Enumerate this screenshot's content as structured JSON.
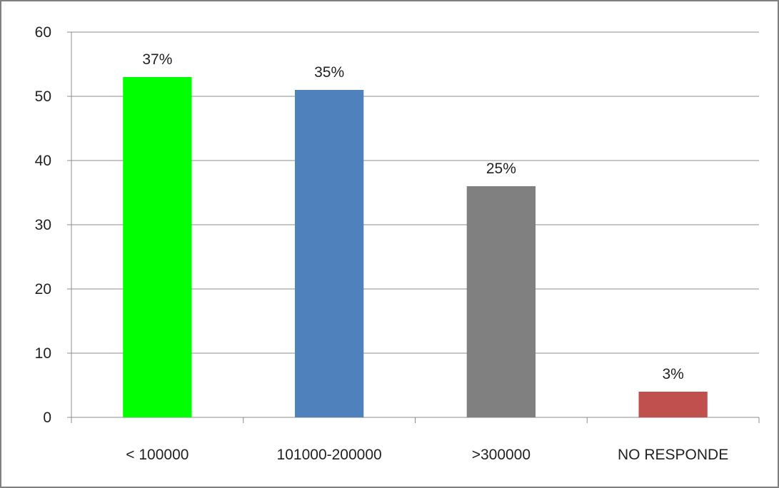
{
  "chart_data": {
    "type": "bar",
    "categories": [
      "< 100000",
      "101000-200000",
      ">300000",
      "NO RESPONDE"
    ],
    "values": [
      53,
      51,
      36,
      4
    ],
    "data_labels": [
      "37%",
      "35%",
      "25%",
      "3%"
    ],
    "bar_colors": [
      "#00FF00",
      "#4F81BD",
      "#808080",
      "#C0504D"
    ],
    "ylim": [
      0,
      60
    ],
    "yticks": [
      0,
      10,
      20,
      30,
      40,
      50,
      60
    ],
    "grid": true,
    "legend": "none",
    "title": "",
    "xlabel": "",
    "ylabel": ""
  }
}
